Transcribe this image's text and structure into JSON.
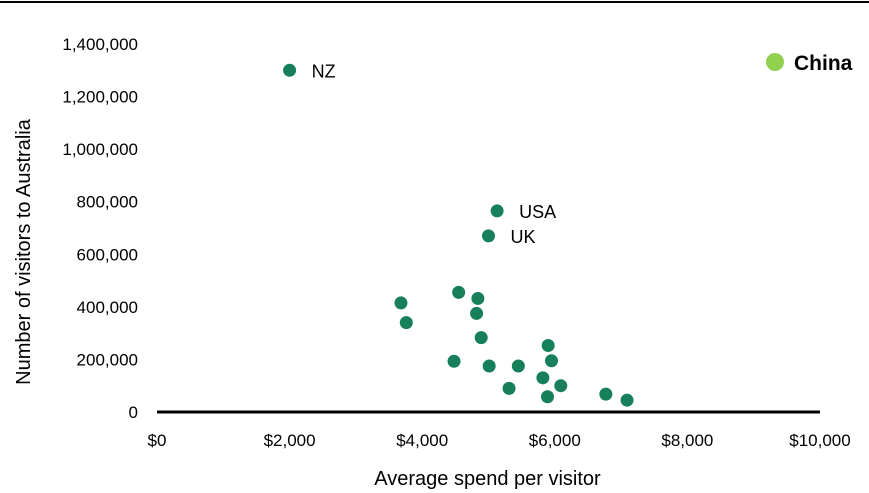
{
  "chart_data": {
    "type": "scatter",
    "xlabel": "Average spend per visitor",
    "ylabel": "Number of visitors to Australia",
    "xlim": [
      0,
      10000
    ],
    "ylim": [
      0,
      1400000
    ],
    "x_ticks": [
      "$0",
      "$2,000",
      "$4,000",
      "$6,000",
      "$8,000",
      "$10,000"
    ],
    "y_ticks": [
      "0",
      "200,000",
      "400,000",
      "600,000",
      "800,000",
      "1,000,000",
      "1,200,000",
      "1,400,000"
    ],
    "grid": false,
    "legend": {
      "position": "top-right",
      "label": "China",
      "color": "#92d050"
    },
    "series_color": "#17805a",
    "points": [
      {
        "x": 2000,
        "y": 1300000,
        "label": "NZ"
      },
      {
        "x": 5130,
        "y": 765000,
        "label": "USA"
      },
      {
        "x": 5000,
        "y": 670000,
        "label": "UK"
      },
      {
        "x": 3680,
        "y": 415000,
        "label": ""
      },
      {
        "x": 3760,
        "y": 340000,
        "label": ""
      },
      {
        "x": 4550,
        "y": 455000,
        "label": ""
      },
      {
        "x": 4840,
        "y": 432000,
        "label": ""
      },
      {
        "x": 4820,
        "y": 375000,
        "label": ""
      },
      {
        "x": 4890,
        "y": 283000,
        "label": ""
      },
      {
        "x": 4480,
        "y": 193000,
        "label": ""
      },
      {
        "x": 5010,
        "y": 175000,
        "label": ""
      },
      {
        "x": 5450,
        "y": 175000,
        "label": ""
      },
      {
        "x": 5310,
        "y": 90000,
        "label": ""
      },
      {
        "x": 5900,
        "y": 253000,
        "label": ""
      },
      {
        "x": 5950,
        "y": 195000,
        "label": ""
      },
      {
        "x": 5820,
        "y": 130000,
        "label": ""
      },
      {
        "x": 6090,
        "y": 100000,
        "label": ""
      },
      {
        "x": 5890,
        "y": 58000,
        "label": ""
      },
      {
        "x": 6770,
        "y": 68000,
        "label": ""
      },
      {
        "x": 7090,
        "y": 45000,
        "label": ""
      }
    ]
  }
}
